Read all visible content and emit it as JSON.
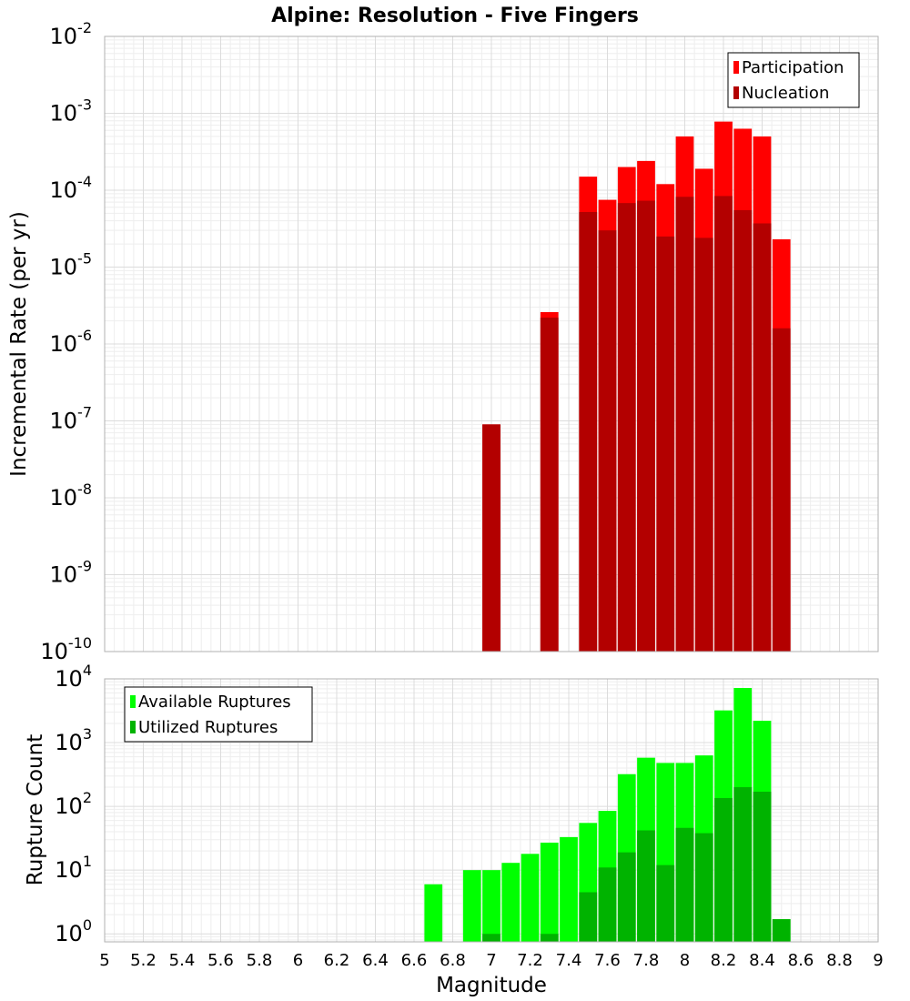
{
  "chart_data": [
    {
      "type": "bar",
      "title": "Alpine: Resolution - Five Fingers",
      "xlabel": "",
      "ylabel": "Incremental Rate (per yr)",
      "y_scale": "log",
      "ylim": [
        1e-10,
        0.01
      ],
      "xlim": [
        5,
        9
      ],
      "grid": true,
      "legend_position": "top-right",
      "x": [
        7.0,
        7.3,
        7.5,
        7.6,
        7.7,
        7.8,
        7.9,
        8.0,
        8.1,
        8.2,
        8.3,
        8.4,
        8.5
      ],
      "series": [
        {
          "name": "Participation",
          "color": "#ff0000",
          "values": [
            9e-08,
            2.6e-06,
            0.00015,
            7.5e-05,
            0.0002,
            0.00024,
            0.00012,
            0.0005,
            0.00019,
            0.00078,
            0.00063,
            0.0005,
            2.3e-05
          ]
        },
        {
          "name": "Nucleation",
          "color": "#b30000",
          "values": [
            9e-08,
            2.2e-06,
            5.2e-05,
            3e-05,
            6.8e-05,
            7.3e-05,
            2.5e-05,
            8.2e-05,
            2.4e-05,
            8.4e-05,
            5.5e-05,
            3.7e-05,
            1.6e-06
          ]
        }
      ]
    },
    {
      "type": "bar",
      "title": "",
      "xlabel": "Magnitude",
      "ylabel": "Rupture Count",
      "y_scale": "log",
      "ylim": [
        0.75,
        10000
      ],
      "xlim": [
        5,
        9
      ],
      "grid": true,
      "legend_position": "top-left",
      "x_ticks": [
        "5",
        "5.2",
        "5.4",
        "5.6",
        "5.8",
        "6",
        "6.2",
        "6.4",
        "6.6",
        "6.8",
        "7",
        "7.2",
        "7.4",
        "7.6",
        "7.8",
        "8",
        "8.2",
        "8.4",
        "8.6",
        "8.8",
        "9"
      ],
      "x": [
        6.7,
        6.9,
        7.0,
        7.1,
        7.2,
        7.3,
        7.4,
        7.5,
        7.6,
        7.7,
        7.8,
        7.9,
        8.0,
        8.1,
        8.2,
        8.3,
        8.4,
        8.5
      ],
      "series": [
        {
          "name": "Available Ruptures",
          "color": "#00ff00",
          "values": [
            6,
            10,
            10,
            13,
            18,
            27,
            33,
            55,
            85,
            320,
            580,
            480,
            480,
            630,
            3200,
            7200,
            2200,
            1.7
          ]
        },
        {
          "name": "Utilized Ruptures",
          "color": "#00b300",
          "values": [
            0,
            0,
            1,
            0,
            0,
            1,
            0,
            4.5,
            11,
            19,
            42,
            12,
            46,
            38,
            135,
            200,
            170,
            1.7
          ]
        }
      ]
    }
  ]
}
